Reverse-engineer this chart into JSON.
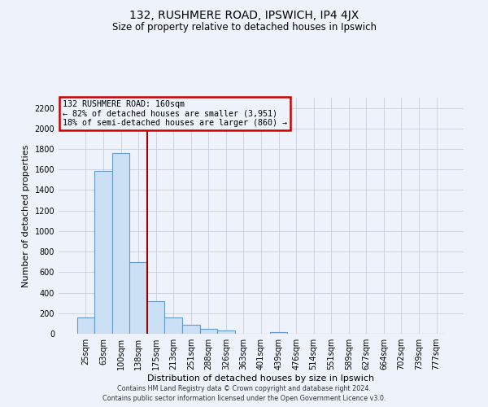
{
  "title": "132, RUSHMERE ROAD, IPSWICH, IP4 4JX",
  "subtitle": "Size of property relative to detached houses in Ipswich",
  "xlabel": "Distribution of detached houses by size in Ipswich",
  "ylabel": "Number of detached properties",
  "bar_color": "#cce0f5",
  "bar_edge_color": "#6699cc",
  "vline_color": "#990000",
  "annotation_line1": "132 RUSHMERE ROAD: 160sqm",
  "annotation_line2": "← 82% of detached houses are smaller (3,951)",
  "annotation_line3": "18% of semi-detached houses are larger (860) →",
  "annotation_box_edgecolor": "#cc0000",
  "categories": [
    "25sqm",
    "63sqm",
    "100sqm",
    "138sqm",
    "175sqm",
    "213sqm",
    "251sqm",
    "288sqm",
    "326sqm",
    "363sqm",
    "401sqm",
    "439sqm",
    "476sqm",
    "514sqm",
    "551sqm",
    "589sqm",
    "627sqm",
    "664sqm",
    "702sqm",
    "739sqm",
    "777sqm"
  ],
  "values": [
    160,
    1585,
    1760,
    700,
    315,
    155,
    85,
    50,
    30,
    0,
    0,
    15,
    0,
    0,
    0,
    0,
    0,
    0,
    0,
    0,
    0
  ],
  "ylim": [
    0,
    2300
  ],
  "yticks": [
    0,
    200,
    400,
    600,
    800,
    1000,
    1200,
    1400,
    1600,
    1800,
    2000,
    2200
  ],
  "background_color": "#eef2fb",
  "grid_color": "#ccccdd",
  "footer1": "Contains HM Land Registry data © Crown copyright and database right 2024.",
  "footer2": "Contains public sector information licensed under the Open Government Licence v3.0.",
  "vline_xindex": 3.5
}
